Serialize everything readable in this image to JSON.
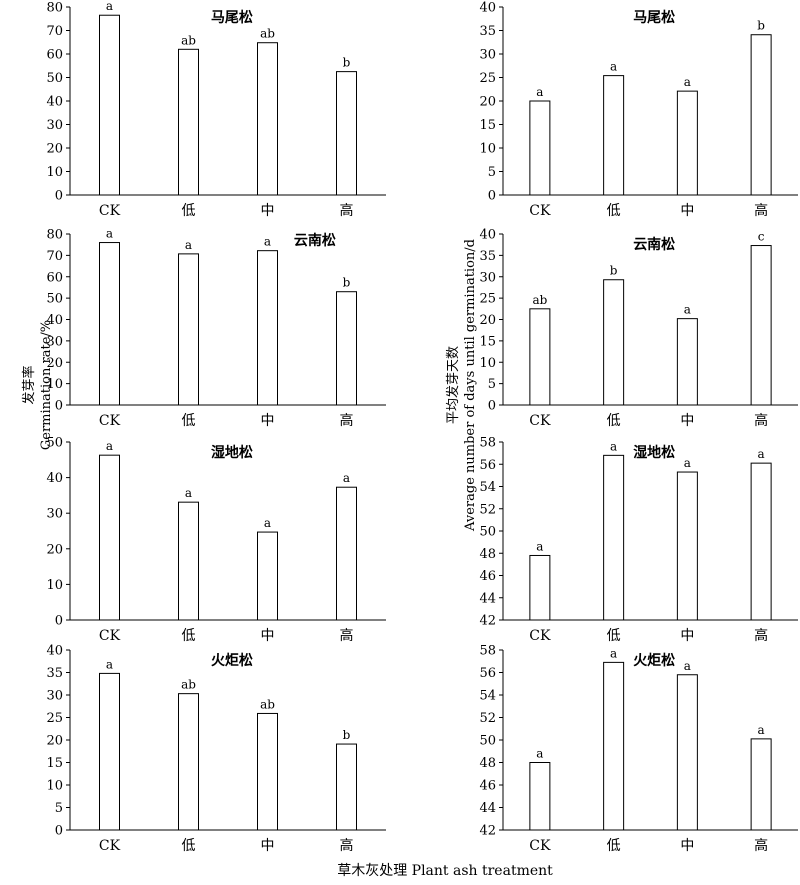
{
  "figure": {
    "ylabel_left_line1": "发芽率",
    "ylabel_left_line2": "Germination rate/%",
    "ylabel_right_line1": "平均发芽天数",
    "ylabel_right_line2": "Average number of days until germination/d",
    "xlabel": "草木灰处理 Plant ash treatment"
  },
  "chart_data": [
    {
      "type": "bar",
      "title": "马尾松",
      "categories": [
        "CK",
        "低",
        "中",
        "高"
      ],
      "values": [
        76.5,
        62,
        64.8,
        52.5
      ],
      "significance": [
        "a",
        "ab",
        "ab",
        "b"
      ],
      "ylim": [
        0,
        80
      ],
      "yticks": [
        0,
        10,
        20,
        30,
        40,
        50,
        60,
        70,
        80
      ]
    },
    {
      "type": "bar",
      "title": "马尾松",
      "categories": [
        "CK",
        "低",
        "中",
        "高"
      ],
      "values": [
        20,
        25.4,
        22.1,
        34.1
      ],
      "significance": [
        "a",
        "a",
        "a",
        "b"
      ],
      "ylim": [
        0,
        40
      ],
      "yticks": [
        0,
        5,
        10,
        15,
        20,
        25,
        30,
        35,
        40
      ]
    },
    {
      "type": "bar",
      "title": "云南松",
      "categories": [
        "CK",
        "低",
        "中",
        "高"
      ],
      "values": [
        76,
        70.7,
        72.2,
        53
      ],
      "significance": [
        "a",
        "a",
        "a",
        "b"
      ],
      "ylim": [
        0,
        80
      ],
      "yticks": [
        0,
        10,
        20,
        30,
        40,
        50,
        60,
        70,
        80
      ]
    },
    {
      "type": "bar",
      "title": "云南松",
      "categories": [
        "CK",
        "低",
        "中",
        "高"
      ],
      "values": [
        22.5,
        29.3,
        20.2,
        37.3
      ],
      "significance": [
        "ab",
        "b",
        "a",
        "c"
      ],
      "ylim": [
        0,
        40
      ],
      "yticks": [
        0,
        5,
        10,
        15,
        20,
        25,
        30,
        35,
        40
      ]
    },
    {
      "type": "bar",
      "title": "湿地松",
      "categories": [
        "CK",
        "低",
        "中",
        "高"
      ],
      "values": [
        46.3,
        33.1,
        24.7,
        37.3
      ],
      "significance": [
        "a",
        "a",
        "a",
        "a"
      ],
      "ylim": [
        0,
        50
      ],
      "yticks": [
        0,
        10,
        20,
        30,
        40,
        50
      ]
    },
    {
      "type": "bar",
      "title": "湿地松",
      "categories": [
        "CK",
        "低",
        "中",
        "高"
      ],
      "values": [
        47.8,
        56.8,
        55.3,
        56.1
      ],
      "significance": [
        "a",
        "a",
        "a",
        "a"
      ],
      "ylim": [
        42,
        58
      ],
      "yticks": [
        42,
        44,
        46,
        48,
        50,
        52,
        54,
        56,
        58
      ]
    },
    {
      "type": "bar",
      "title": "火炬松",
      "categories": [
        "CK",
        "低",
        "中",
        "高"
      ],
      "values": [
        34.8,
        30.3,
        25.9,
        19.1
      ],
      "significance": [
        "a",
        "ab",
        "ab",
        "b"
      ],
      "ylim": [
        0,
        40
      ],
      "yticks": [
        0,
        5,
        10,
        15,
        20,
        25,
        30,
        35,
        40
      ]
    },
    {
      "type": "bar",
      "title": "火炬松",
      "categories": [
        "CK",
        "低",
        "中",
        "高"
      ],
      "values": [
        48,
        56.9,
        55.8,
        50.1
      ],
      "significance": [
        "a",
        "a",
        "a",
        "a"
      ],
      "ylim": [
        42,
        58
      ],
      "yticks": [
        42,
        44,
        46,
        48,
        50,
        52,
        54,
        56,
        58
      ]
    }
  ]
}
